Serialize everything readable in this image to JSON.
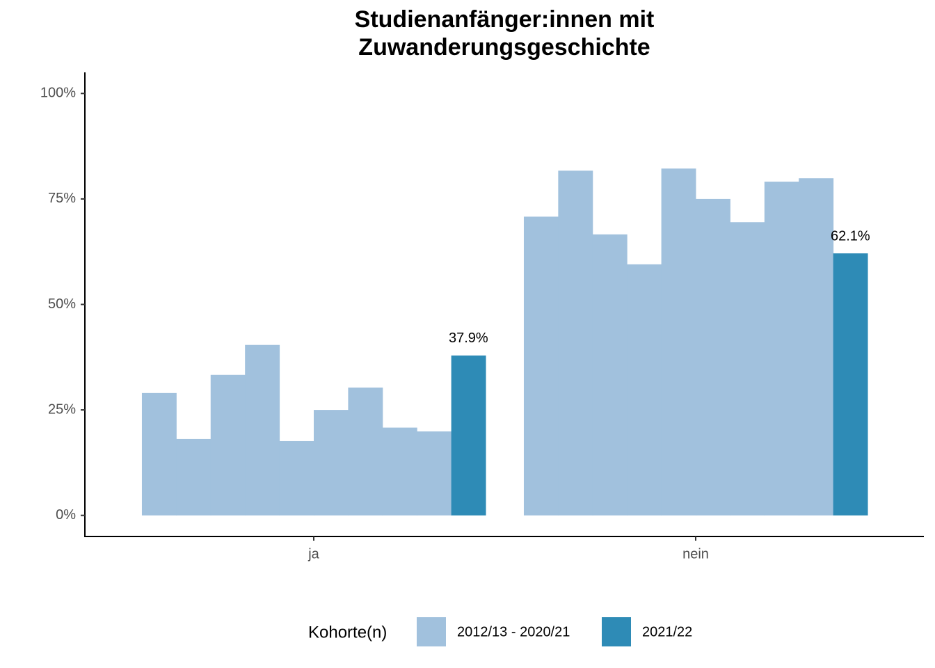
{
  "chart_data": {
    "type": "bar",
    "title": [
      "Studienanfänger:innen mit",
      "Zuwanderungsgeschichte"
    ],
    "categories": [
      "ja",
      "nein"
    ],
    "series": [
      {
        "color": "#a1c1dd",
        "values": [
          29.0,
          70.8
        ]
      },
      {
        "color": "#a1c1dd",
        "values": [
          18.1,
          81.7
        ]
      },
      {
        "color": "#a1c1dd",
        "values": [
          33.3,
          66.6
        ]
      },
      {
        "color": "#a1c1dd",
        "values": [
          40.4,
          59.5
        ]
      },
      {
        "color": "#a1c1dd",
        "values": [
          17.6,
          82.2
        ]
      },
      {
        "color": "#a1c1dd",
        "values": [
          25.0,
          75.0
        ]
      },
      {
        "color": "#a1c1dd",
        "values": [
          30.3,
          69.5
        ]
      },
      {
        "color": "#a1c1dd",
        "values": [
          20.8,
          79.1
        ]
      },
      {
        "color": "#a1c1dd",
        "values": [
          19.9,
          79.9
        ]
      },
      {
        "color": "#2e8bb6",
        "values": [
          37.9,
          62.1
        ],
        "value_labels": [
          "37.9%",
          "62.1%"
        ]
      }
    ],
    "ylim": [
      -5,
      105
    ],
    "yticks": [
      {
        "value": 0,
        "label": "0%"
      },
      {
        "value": 25,
        "label": "25%"
      },
      {
        "value": 50,
        "label": "50%"
      },
      {
        "value": 75,
        "label": "75%"
      },
      {
        "value": 100,
        "label": "100%"
      }
    ],
    "legend": {
      "title": "Kohorte(n)",
      "entries": [
        {
          "name": "2012/13 - 2020/21",
          "color": "#a1c1dd"
        },
        {
          "name": "2021/22",
          "color": "#2e8bb6"
        }
      ]
    }
  }
}
